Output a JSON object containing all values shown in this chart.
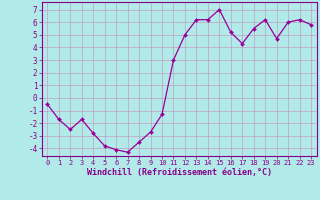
{
  "x": [
    0,
    1,
    2,
    3,
    4,
    5,
    6,
    7,
    8,
    9,
    10,
    11,
    12,
    13,
    14,
    15,
    16,
    17,
    18,
    19,
    20,
    21,
    22,
    23
  ],
  "y": [
    -0.5,
    -1.7,
    -2.5,
    -1.7,
    -2.8,
    -3.8,
    -4.1,
    -4.3,
    -3.5,
    -2.7,
    -1.3,
    3.0,
    5.0,
    6.2,
    6.2,
    7.0,
    5.2,
    4.3,
    5.5,
    6.2,
    4.7,
    6.0,
    6.2,
    5.8
  ],
  "line_color": "#990099",
  "marker_color": "#990099",
  "bg_color": "#b2eaea",
  "grid_color": "#c0a0c0",
  "xlabel": "Windchill (Refroidissement éolien,°C)",
  "ylabel_ticks": [
    7,
    6,
    5,
    4,
    3,
    2,
    1,
    0,
    -1,
    -2,
    -3,
    -4
  ],
  "xtick_labels": [
    "0",
    "1",
    "2",
    "3",
    "4",
    "5",
    "6",
    "7",
    "8",
    "9",
    "10",
    "11",
    "12",
    "13",
    "14",
    "15",
    "16",
    "17",
    "18",
    "19",
    "20",
    "21",
    "22",
    "23"
  ],
  "ylim": [
    -4.6,
    7.6
  ],
  "xlim": [
    -0.5,
    23.5
  ],
  "spine_color": "#880088",
  "font_color": "#880088",
  "figsize": [
    3.2,
    2.0
  ],
  "dpi": 100
}
